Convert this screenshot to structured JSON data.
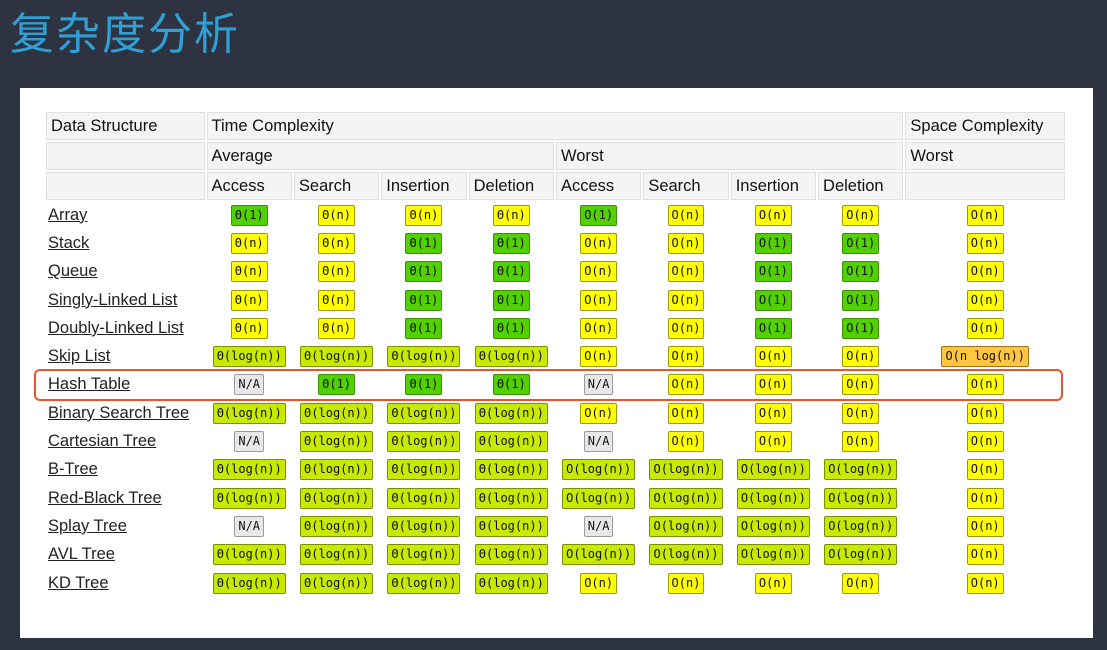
{
  "title": "复杂度分析",
  "header": {
    "data_structure": "Data Structure",
    "time_complexity": "Time Complexity",
    "space_complexity": "Space Complexity",
    "average": "Average",
    "worst": "Worst",
    "space_worst": "Worst",
    "ops": [
      "Access",
      "Search",
      "Insertion",
      "Deletion",
      "Access",
      "Search",
      "Insertion",
      "Deletion"
    ]
  },
  "colors": {
    "good": "#53d000",
    "fair": "#c8ea00",
    "ok": "#ffff00",
    "bad": "#ffc543",
    "na": "#e8e8e8",
    "highlight": "#e8542b",
    "title": "#2f9fd6"
  },
  "highlighted_row": "Hash Table",
  "rows": [
    {
      "name": "Array",
      "cells": [
        [
          "Θ(1)",
          "good"
        ],
        [
          "Θ(n)",
          "ok"
        ],
        [
          "Θ(n)",
          "ok"
        ],
        [
          "Θ(n)",
          "ok"
        ],
        [
          "O(1)",
          "good"
        ],
        [
          "O(n)",
          "ok"
        ],
        [
          "O(n)",
          "ok"
        ],
        [
          "O(n)",
          "ok"
        ],
        [
          "O(n)",
          "ok"
        ]
      ]
    },
    {
      "name": "Stack",
      "cells": [
        [
          "Θ(n)",
          "ok"
        ],
        [
          "Θ(n)",
          "ok"
        ],
        [
          "Θ(1)",
          "good"
        ],
        [
          "Θ(1)",
          "good"
        ],
        [
          "O(n)",
          "ok"
        ],
        [
          "O(n)",
          "ok"
        ],
        [
          "O(1)",
          "good"
        ],
        [
          "O(1)",
          "good"
        ],
        [
          "O(n)",
          "ok"
        ]
      ]
    },
    {
      "name": "Queue",
      "cells": [
        [
          "Θ(n)",
          "ok"
        ],
        [
          "Θ(n)",
          "ok"
        ],
        [
          "Θ(1)",
          "good"
        ],
        [
          "Θ(1)",
          "good"
        ],
        [
          "O(n)",
          "ok"
        ],
        [
          "O(n)",
          "ok"
        ],
        [
          "O(1)",
          "good"
        ],
        [
          "O(1)",
          "good"
        ],
        [
          "O(n)",
          "ok"
        ]
      ]
    },
    {
      "name": "Singly-Linked List",
      "cells": [
        [
          "Θ(n)",
          "ok"
        ],
        [
          "Θ(n)",
          "ok"
        ],
        [
          "Θ(1)",
          "good"
        ],
        [
          "Θ(1)",
          "good"
        ],
        [
          "O(n)",
          "ok"
        ],
        [
          "O(n)",
          "ok"
        ],
        [
          "O(1)",
          "good"
        ],
        [
          "O(1)",
          "good"
        ],
        [
          "O(n)",
          "ok"
        ]
      ]
    },
    {
      "name": "Doubly-Linked List",
      "cells": [
        [
          "Θ(n)",
          "ok"
        ],
        [
          "Θ(n)",
          "ok"
        ],
        [
          "Θ(1)",
          "good"
        ],
        [
          "Θ(1)",
          "good"
        ],
        [
          "O(n)",
          "ok"
        ],
        [
          "O(n)",
          "ok"
        ],
        [
          "O(1)",
          "good"
        ],
        [
          "O(1)",
          "good"
        ],
        [
          "O(n)",
          "ok"
        ]
      ]
    },
    {
      "name": "Skip List",
      "cells": [
        [
          "Θ(log(n))",
          "fair"
        ],
        [
          "Θ(log(n))",
          "fair"
        ],
        [
          "Θ(log(n))",
          "fair"
        ],
        [
          "Θ(log(n))",
          "fair"
        ],
        [
          "O(n)",
          "ok"
        ],
        [
          "O(n)",
          "ok"
        ],
        [
          "O(n)",
          "ok"
        ],
        [
          "O(n)",
          "ok"
        ],
        [
          "O(n log(n))",
          "bad"
        ]
      ]
    },
    {
      "name": "Hash Table",
      "cells": [
        [
          "N/A",
          "na"
        ],
        [
          "Θ(1)",
          "good"
        ],
        [
          "Θ(1)",
          "good"
        ],
        [
          "Θ(1)",
          "good"
        ],
        [
          "N/A",
          "na"
        ],
        [
          "O(n)",
          "ok"
        ],
        [
          "O(n)",
          "ok"
        ],
        [
          "O(n)",
          "ok"
        ],
        [
          "O(n)",
          "ok"
        ]
      ]
    },
    {
      "name": "Binary Search Tree",
      "cells": [
        [
          "Θ(log(n))",
          "fair"
        ],
        [
          "Θ(log(n))",
          "fair"
        ],
        [
          "Θ(log(n))",
          "fair"
        ],
        [
          "Θ(log(n))",
          "fair"
        ],
        [
          "O(n)",
          "ok"
        ],
        [
          "O(n)",
          "ok"
        ],
        [
          "O(n)",
          "ok"
        ],
        [
          "O(n)",
          "ok"
        ],
        [
          "O(n)",
          "ok"
        ]
      ]
    },
    {
      "name": "Cartesian Tree",
      "cells": [
        [
          "N/A",
          "na"
        ],
        [
          "Θ(log(n))",
          "fair"
        ],
        [
          "Θ(log(n))",
          "fair"
        ],
        [
          "Θ(log(n))",
          "fair"
        ],
        [
          "N/A",
          "na"
        ],
        [
          "O(n)",
          "ok"
        ],
        [
          "O(n)",
          "ok"
        ],
        [
          "O(n)",
          "ok"
        ],
        [
          "O(n)",
          "ok"
        ]
      ]
    },
    {
      "name": "B-Tree",
      "cells": [
        [
          "Θ(log(n))",
          "fair"
        ],
        [
          "Θ(log(n))",
          "fair"
        ],
        [
          "Θ(log(n))",
          "fair"
        ],
        [
          "Θ(log(n))",
          "fair"
        ],
        [
          "O(log(n))",
          "fair"
        ],
        [
          "O(log(n))",
          "fair"
        ],
        [
          "O(log(n))",
          "fair"
        ],
        [
          "O(log(n))",
          "fair"
        ],
        [
          "O(n)",
          "ok"
        ]
      ]
    },
    {
      "name": "Red-Black Tree",
      "cells": [
        [
          "Θ(log(n))",
          "fair"
        ],
        [
          "Θ(log(n))",
          "fair"
        ],
        [
          "Θ(log(n))",
          "fair"
        ],
        [
          "Θ(log(n))",
          "fair"
        ],
        [
          "O(log(n))",
          "fair"
        ],
        [
          "O(log(n))",
          "fair"
        ],
        [
          "O(log(n))",
          "fair"
        ],
        [
          "O(log(n))",
          "fair"
        ],
        [
          "O(n)",
          "ok"
        ]
      ]
    },
    {
      "name": "Splay Tree",
      "cells": [
        [
          "N/A",
          "na"
        ],
        [
          "Θ(log(n))",
          "fair"
        ],
        [
          "Θ(log(n))",
          "fair"
        ],
        [
          "Θ(log(n))",
          "fair"
        ],
        [
          "N/A",
          "na"
        ],
        [
          "O(log(n))",
          "fair"
        ],
        [
          "O(log(n))",
          "fair"
        ],
        [
          "O(log(n))",
          "fair"
        ],
        [
          "O(n)",
          "ok"
        ]
      ]
    },
    {
      "name": "AVL Tree",
      "cells": [
        [
          "Θ(log(n))",
          "fair"
        ],
        [
          "Θ(log(n))",
          "fair"
        ],
        [
          "Θ(log(n))",
          "fair"
        ],
        [
          "Θ(log(n))",
          "fair"
        ],
        [
          "O(log(n))",
          "fair"
        ],
        [
          "O(log(n))",
          "fair"
        ],
        [
          "O(log(n))",
          "fair"
        ],
        [
          "O(log(n))",
          "fair"
        ],
        [
          "O(n)",
          "ok"
        ]
      ]
    },
    {
      "name": "KD Tree",
      "cells": [
        [
          "Θ(log(n))",
          "fair"
        ],
        [
          "Θ(log(n))",
          "fair"
        ],
        [
          "Θ(log(n))",
          "fair"
        ],
        [
          "Θ(log(n))",
          "fair"
        ],
        [
          "O(n)",
          "ok"
        ],
        [
          "O(n)",
          "ok"
        ],
        [
          "O(n)",
          "ok"
        ],
        [
          "O(n)",
          "ok"
        ],
        [
          "O(n)",
          "ok"
        ]
      ]
    }
  ]
}
